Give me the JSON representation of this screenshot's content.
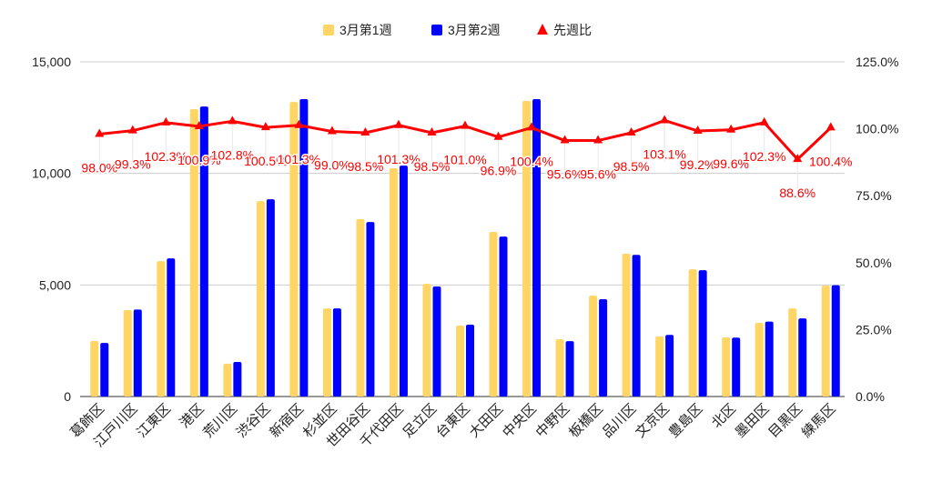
{
  "chart_data": {
    "type": "bar",
    "title": "",
    "categories": [
      "葛飾区",
      "江戸川区",
      "江東区",
      "港区",
      "荒川区",
      "渋谷区",
      "新宿区",
      "杉並区",
      "世田谷区",
      "千代田区",
      "足立区",
      "台東区",
      "大田区",
      "中央区",
      "中野区",
      "板橋区",
      "品川区",
      "文京区",
      "豊島区",
      "北区",
      "墨田区",
      "目黒区",
      "練馬区"
    ],
    "series": [
      {
        "name": "3月第1週",
        "type": "bar",
        "axis": "left",
        "color": "#ffd666",
        "values": [
          2490,
          3870,
          6070,
          12880,
          1470,
          8760,
          13200,
          3950,
          7950,
          10230,
          5050,
          3180,
          7380,
          13250,
          2570,
          4520,
          6400,
          2690,
          5700,
          2650,
          3300,
          3950,
          4970
        ]
      },
      {
        "name": "3月第2週",
        "type": "bar",
        "axis": "left",
        "color": "#0000ff",
        "values": [
          2400,
          3900,
          6190,
          13000,
          1550,
          8840,
          13330,
          3950,
          7820,
          10350,
          4930,
          3220,
          7170,
          13330,
          2480,
          4360,
          6350,
          2760,
          5660,
          2640,
          3360,
          3500,
          4990
        ]
      },
      {
        "name": "先週比",
        "type": "line",
        "axis": "right",
        "color": "#ff0000",
        "values": [
          98.0,
          99.3,
          102.3,
          100.9,
          102.8,
          100.5,
          101.3,
          99.0,
          98.5,
          101.3,
          98.5,
          101.0,
          96.9,
          100.4,
          95.6,
          95.6,
          98.5,
          103.1,
          99.2,
          99.6,
          102.3,
          88.6,
          100.4
        ],
        "labels": [
          "98.0%",
          "99.3%",
          "102.3%",
          "100.9%",
          "102.8%",
          "100.5%",
          "101.3%",
          "99.0%",
          "98.5%",
          "101.3%",
          "98.5%",
          "101.0%",
          "96.9%",
          "100.4%",
          "95.6%",
          "95.6%",
          "98.5%",
          "103.1%",
          "99.2%",
          "99.6%",
          "102.3%",
          "88.6%",
          "100.4%"
        ]
      }
    ],
    "y_left": {
      "range": [
        0,
        15000
      ],
      "ticks": [
        "0",
        "5,000",
        "10,000",
        "15,000"
      ],
      "tick_values": [
        0,
        5000,
        10000,
        15000
      ]
    },
    "y_right": {
      "range": [
        0,
        125
      ],
      "ticks": [
        "0.0%",
        "25.0%",
        "50.0%",
        "75.0%",
        "100.0%",
        "125.0%"
      ],
      "tick_values": [
        0,
        25,
        50,
        75,
        100,
        125
      ]
    },
    "legend": "top",
    "grid": true
  }
}
